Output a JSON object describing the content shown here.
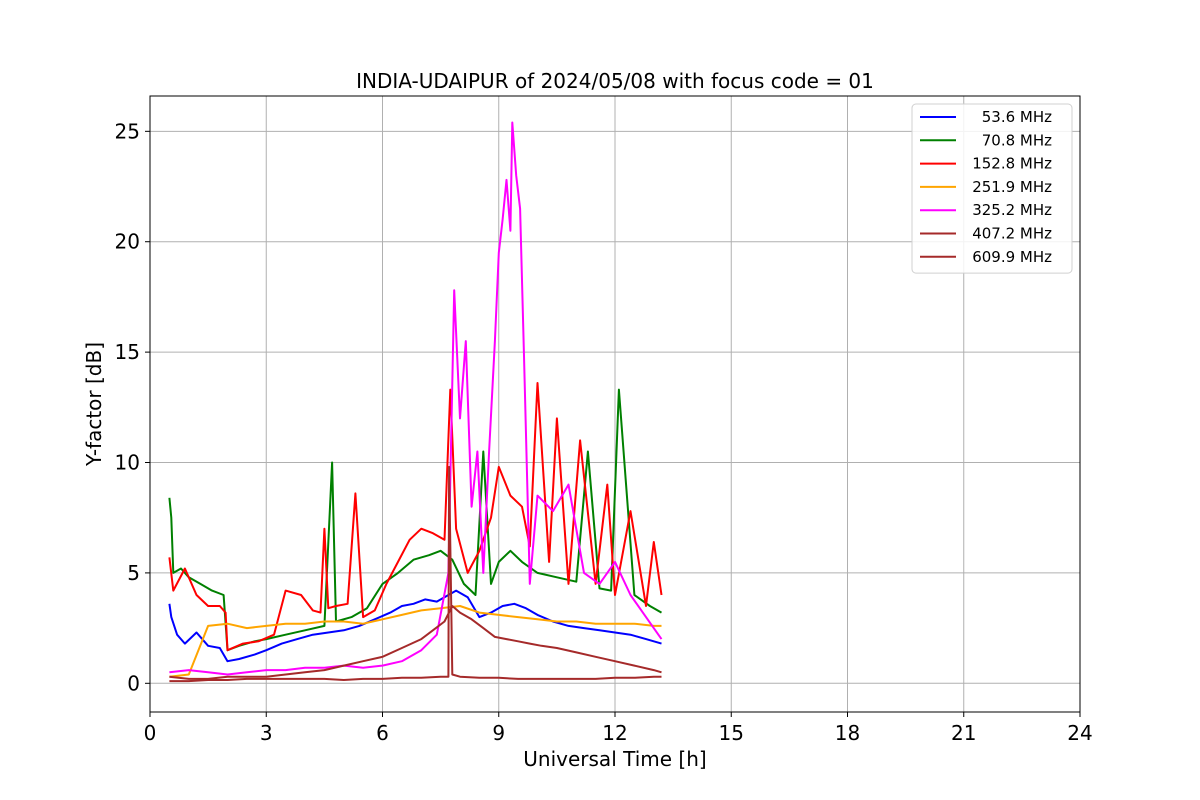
{
  "chart_data": {
    "type": "line",
    "title": "INDIA-UDAIPUR of 2024/05/08 with focus code = 01",
    "xlabel": "Universal Time [h]",
    "ylabel": "Y-factor [dB]",
    "xlim": [
      0,
      24
    ],
    "ylim": [
      -1.3,
      26.6
    ],
    "xticks": [
      0,
      3,
      6,
      9,
      12,
      15,
      18,
      21,
      24
    ],
    "yticks": [
      0,
      5,
      10,
      15,
      20,
      25
    ],
    "grid": true,
    "legend_position": "top-right",
    "series": [
      {
        "name": "53.6 MHz",
        "color": "#0000ff",
        "x": [
          0.5,
          0.55,
          0.7,
          0.9,
          1.2,
          1.5,
          1.8,
          2.0,
          2.3,
          2.7,
          3.0,
          3.4,
          3.8,
          4.2,
          4.6,
          5.0,
          5.4,
          5.8,
          6.2,
          6.5,
          6.8,
          7.1,
          7.4,
          7.7,
          7.9,
          8.2,
          8.5,
          8.8,
          9.1,
          9.4,
          9.7,
          10.0,
          10.4,
          10.8,
          11.2,
          11.6,
          12.0,
          12.4,
          12.8,
          13.2
        ],
        "y": [
          3.6,
          3.0,
          2.2,
          1.8,
          2.3,
          1.7,
          1.6,
          1.0,
          1.1,
          1.3,
          1.5,
          1.8,
          2.0,
          2.2,
          2.3,
          2.4,
          2.6,
          2.9,
          3.2,
          3.5,
          3.6,
          3.8,
          3.7,
          4.0,
          4.2,
          3.9,
          3.0,
          3.2,
          3.5,
          3.6,
          3.4,
          3.1,
          2.8,
          2.6,
          2.5,
          2.4,
          2.3,
          2.2,
          2.0,
          1.8
        ]
      },
      {
        "name": "70.8 MHz",
        "color": "#008000",
        "x": [
          0.5,
          0.55,
          0.6,
          0.8,
          1.0,
          1.3,
          1.6,
          1.9,
          2.0,
          2.3,
          2.7,
          3.0,
          3.5,
          4.0,
          4.5,
          4.7,
          4.8,
          5.2,
          5.6,
          6.0,
          6.4,
          6.8,
          7.2,
          7.5,
          7.8,
          8.1,
          8.4,
          8.6,
          8.8,
          9.0,
          9.3,
          9.6,
          10.0,
          10.5,
          11.0,
          11.3,
          11.6,
          11.9,
          12.1,
          12.5,
          12.9,
          13.2
        ],
        "y": [
          8.4,
          7.5,
          5.0,
          5.2,
          4.8,
          4.5,
          4.2,
          4.0,
          1.5,
          1.7,
          1.9,
          2.0,
          2.2,
          2.4,
          2.6,
          10.0,
          2.8,
          3.0,
          3.4,
          4.5,
          5.0,
          5.6,
          5.8,
          6.0,
          5.6,
          4.5,
          4.0,
          10.5,
          4.5,
          5.5,
          6.0,
          5.5,
          5.0,
          4.8,
          4.6,
          10.5,
          4.3,
          4.2,
          13.3,
          4.0,
          3.5,
          3.2
        ]
      },
      {
        "name": "152.8 MHz",
        "color": "#ff0000",
        "x": [
          0.5,
          0.6,
          0.9,
          1.2,
          1.5,
          1.8,
          1.95,
          2.0,
          2.4,
          2.8,
          3.2,
          3.5,
          3.9,
          4.2,
          4.4,
          4.5,
          4.6,
          4.8,
          5.1,
          5.3,
          5.5,
          5.8,
          6.1,
          6.4,
          6.7,
          7.0,
          7.3,
          7.6,
          7.75,
          7.9,
          8.2,
          8.5,
          8.8,
          9.0,
          9.3,
          9.6,
          9.8,
          10.0,
          10.3,
          10.5,
          10.8,
          11.1,
          11.5,
          11.8,
          12.0,
          12.4,
          12.8,
          13.0,
          13.2
        ],
        "y": [
          5.7,
          4.2,
          5.2,
          4.0,
          3.5,
          3.5,
          3.2,
          1.5,
          1.8,
          1.9,
          2.2,
          4.2,
          4.0,
          3.3,
          3.2,
          7.0,
          3.4,
          3.5,
          3.6,
          8.6,
          3.0,
          3.3,
          4.5,
          5.5,
          6.5,
          7.0,
          6.8,
          6.5,
          13.3,
          7.0,
          5.0,
          6.0,
          7.5,
          9.8,
          8.5,
          8.0,
          6.2,
          13.6,
          5.5,
          12.0,
          4.5,
          11.0,
          4.5,
          9.0,
          4.0,
          7.8,
          3.5,
          6.4,
          4.0
        ]
      },
      {
        "name": "251.9 MHz",
        "color": "#ffa500",
        "x": [
          0.5,
          1.0,
          1.5,
          2.0,
          2.5,
          3.0,
          3.5,
          4.0,
          4.5,
          5.0,
          5.5,
          6.0,
          6.5,
          7.0,
          7.5,
          8.0,
          8.5,
          9.0,
          9.5,
          10.0,
          10.5,
          11.0,
          11.5,
          12.0,
          12.5,
          13.0,
          13.2
        ],
        "y": [
          0.3,
          0.4,
          2.6,
          2.7,
          2.5,
          2.6,
          2.7,
          2.7,
          2.8,
          2.8,
          2.7,
          2.9,
          3.1,
          3.3,
          3.4,
          3.5,
          3.2,
          3.1,
          3.0,
          2.9,
          2.8,
          2.8,
          2.7,
          2.7,
          2.7,
          2.6,
          2.6
        ]
      },
      {
        "name": "325.2 MHz",
        "color": "#ff00ff",
        "x": [
          0.5,
          1.0,
          1.5,
          2.0,
          2.5,
          3.0,
          3.5,
          4.0,
          4.5,
          5.0,
          5.5,
          6.0,
          6.5,
          7.0,
          7.4,
          7.7,
          7.85,
          8.0,
          8.15,
          8.3,
          8.45,
          8.6,
          8.75,
          8.9,
          9.0,
          9.1,
          9.2,
          9.3,
          9.35,
          9.45,
          9.55,
          9.65,
          9.8,
          10.0,
          10.4,
          10.8,
          11.2,
          11.6,
          12.0,
          12.4,
          12.8,
          13.2
        ],
        "y": [
          0.5,
          0.6,
          0.5,
          0.4,
          0.5,
          0.6,
          0.6,
          0.7,
          0.7,
          0.8,
          0.7,
          0.8,
          1.0,
          1.5,
          2.2,
          5.0,
          17.8,
          12.0,
          15.5,
          8.0,
          10.5,
          5.0,
          10.5,
          15.5,
          19.5,
          21.0,
          22.8,
          20.5,
          25.4,
          23.0,
          21.5,
          15.0,
          4.5,
          8.5,
          7.8,
          9.0,
          5.0,
          4.5,
          5.5,
          4.0,
          3.0,
          2.0
        ]
      },
      {
        "name": "407.2 MHz",
        "color": "#a52a2a",
        "x": [
          0.5,
          1.0,
          1.5,
          2.0,
          2.5,
          3.0,
          3.5,
          4.0,
          4.5,
          5.0,
          5.5,
          6.0,
          6.5,
          7.0,
          7.3,
          7.6,
          7.8,
          8.0,
          8.3,
          8.6,
          8.9,
          9.2,
          9.5,
          9.8,
          10.1,
          10.5,
          11.0,
          11.5,
          12.0,
          12.5,
          13.0,
          13.2
        ],
        "y": [
          0.3,
          0.2,
          0.2,
          0.3,
          0.3,
          0.3,
          0.4,
          0.5,
          0.6,
          0.8,
          1.0,
          1.2,
          1.6,
          2.0,
          2.4,
          2.8,
          3.5,
          3.2,
          2.9,
          2.5,
          2.1,
          2.0,
          1.9,
          1.8,
          1.7,
          1.6,
          1.4,
          1.2,
          1.0,
          0.8,
          0.6,
          0.5
        ]
      },
      {
        "name": "609.9 MHz",
        "color": "#a52a2a",
        "x": [
          0.5,
          1.0,
          1.5,
          2.0,
          2.5,
          3.0,
          3.5,
          4.0,
          4.5,
          5.0,
          5.5,
          6.0,
          6.5,
          7.0,
          7.5,
          7.7,
          7.72,
          7.8,
          8.0,
          8.5,
          9.0,
          9.5,
          10.0,
          10.5,
          11.0,
          11.5,
          12.0,
          12.5,
          13.0,
          13.2
        ],
        "y": [
          0.1,
          0.1,
          0.15,
          0.15,
          0.2,
          0.2,
          0.2,
          0.2,
          0.2,
          0.15,
          0.2,
          0.2,
          0.25,
          0.25,
          0.3,
          0.3,
          9.8,
          0.4,
          0.3,
          0.25,
          0.25,
          0.2,
          0.2,
          0.2,
          0.2,
          0.2,
          0.25,
          0.25,
          0.3,
          0.3
        ]
      }
    ]
  }
}
